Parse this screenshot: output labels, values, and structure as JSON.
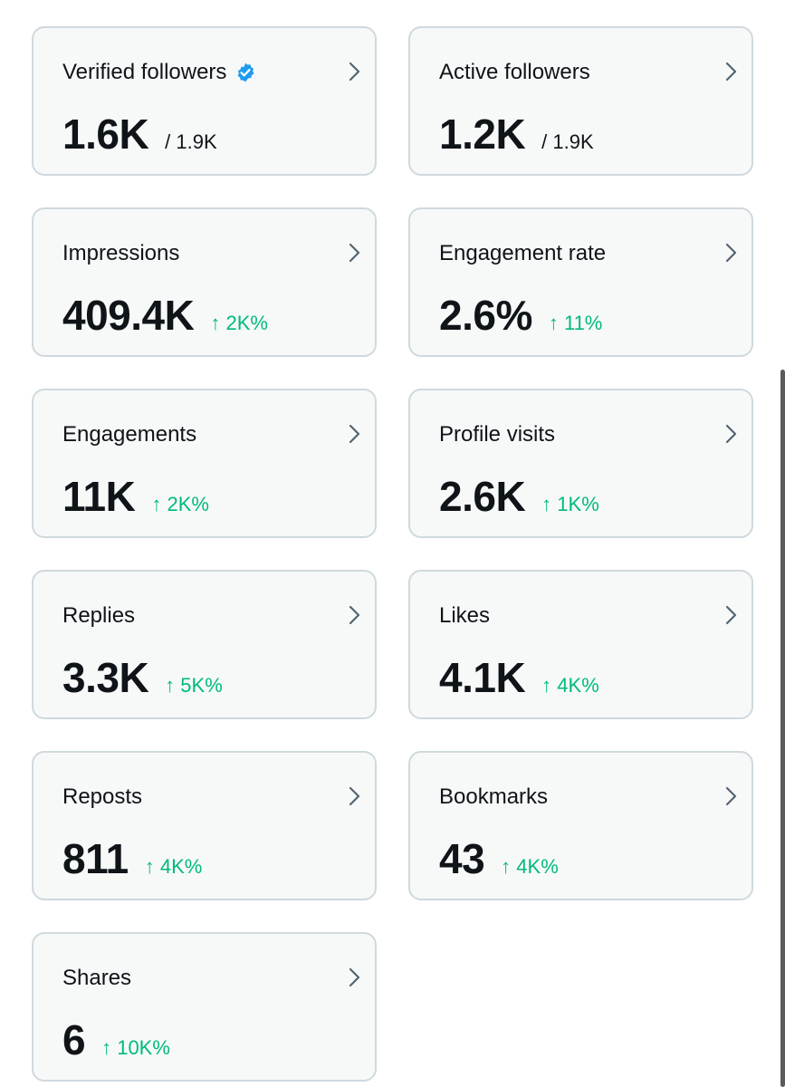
{
  "cards": [
    {
      "title": "Verified followers",
      "value": "1.6K",
      "total": "/ 1.9K",
      "change": "",
      "verified": true
    },
    {
      "title": "Active followers",
      "value": "1.2K",
      "total": "/ 1.9K",
      "change": ""
    },
    {
      "title": "Impressions",
      "value": "409.4K",
      "total": "",
      "change": "↑ 2K%"
    },
    {
      "title": "Engagement rate",
      "value": "2.6%",
      "total": "",
      "change": "↑ 11%"
    },
    {
      "title": "Engagements",
      "value": "11K",
      "total": "",
      "change": "↑ 2K%"
    },
    {
      "title": "Profile visits",
      "value": "2.6K",
      "total": "",
      "change": "↑ 1K%"
    },
    {
      "title": "Replies",
      "value": "3.3K",
      "total": "",
      "change": "↑ 5K%"
    },
    {
      "title": "Likes",
      "value": "4.1K",
      "total": "",
      "change": "↑ 4K%"
    },
    {
      "title": "Reposts",
      "value": "811",
      "total": "",
      "change": "↑ 4K%"
    },
    {
      "title": "Bookmarks",
      "value": "43",
      "total": "",
      "change": "↑ 4K%"
    },
    {
      "title": "Shares",
      "value": "6",
      "total": "",
      "change": "↑ 10K%"
    }
  ],
  "icons": {
    "verified": "verified-badge-icon",
    "chevron": "chevron-right-icon"
  },
  "colors": {
    "positive_change": "#00ba7c",
    "verified_badge": "#1d9bf0",
    "card_background": "#f7f9f9",
    "card_border": "#cfd9de",
    "text": "#0f1419"
  }
}
